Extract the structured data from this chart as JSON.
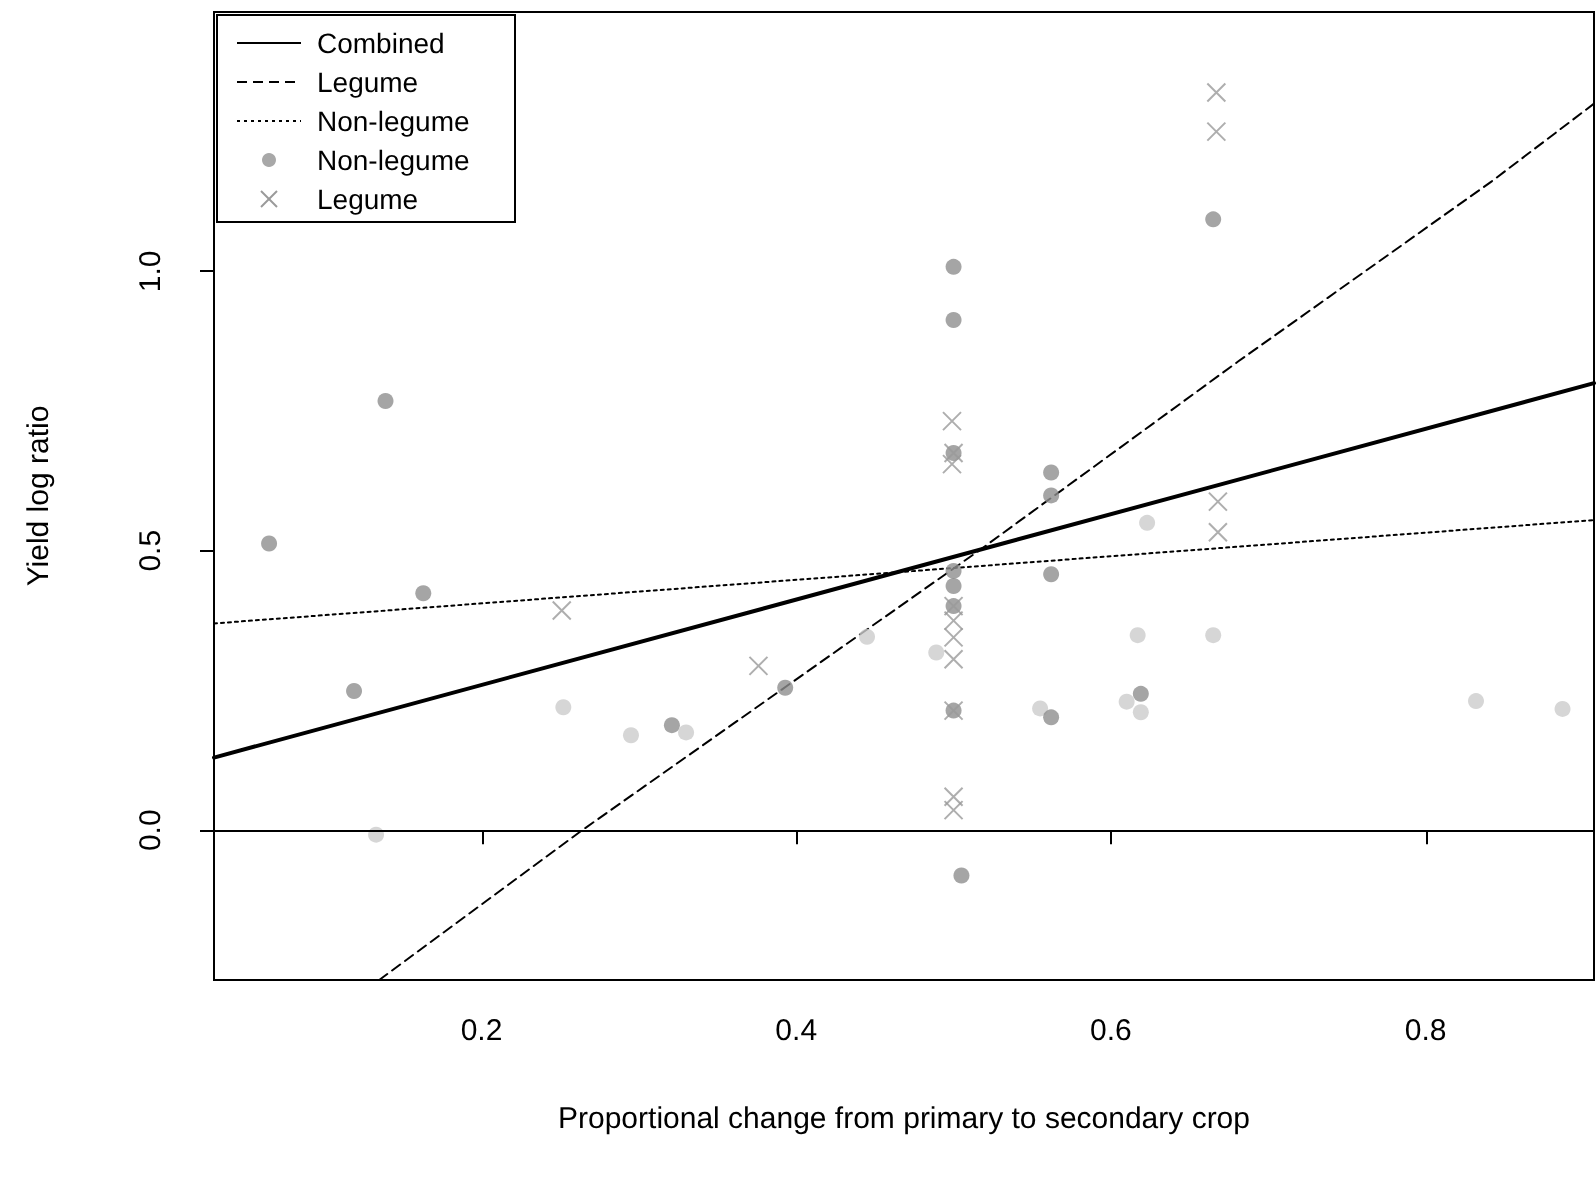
{
  "chart_data": {
    "type": "scatter",
    "xlabel": "Proportional change from primary to secondary crop",
    "ylabel": "Yield log ratio",
    "xlim": [
      0.03,
      0.907
    ],
    "ylim": [
      -0.268,
      1.464
    ],
    "xticks": [
      0.2,
      0.4,
      0.6,
      0.8
    ],
    "yticks": [
      {
        "value": 0,
        "label": "0.0"
      },
      {
        "value": 0.5,
        "label": "0.5"
      },
      {
        "value": 1,
        "label": "1.0"
      }
    ],
    "grid": false,
    "legend": "top left",
    "ref_lines": [
      {
        "axis": "y",
        "value": 0,
        "color": "#000000",
        "line_style": "solid"
      }
    ],
    "series": [
      {
        "name": "Combined",
        "type": "line",
        "color": "#000000",
        "line_style": "solid",
        "marker": "none",
        "x": [
          0.03,
          0.907
        ],
        "values": [
          0.13,
          0.8
        ]
      },
      {
        "name": "Legume",
        "type": "line",
        "color": "#000000",
        "line_style": "dashed",
        "marker": "none",
        "x": [
          0.135,
          0.264,
          0.516,
          0.681,
          0.842,
          0.907
        ],
        "values": [
          -0.268,
          0.0,
          0.5,
          0.839,
          1.161,
          1.3
        ]
      },
      {
        "name": "Non-legume",
        "type": "line",
        "color": "#000000",
        "line_style": "dotted",
        "marker": "none",
        "x": [
          0.03,
          0.907
        ],
        "values": [
          0.37,
          0.555
        ]
      },
      {
        "name": "Non-legume",
        "type": "scatter",
        "color": "#a8a8a8",
        "marker": "circle",
        "x": [
          0.065,
          0.163,
          0.119,
          0.252,
          0.393,
          0.295,
          0.321,
          0.33,
          0.445,
          0.133,
          0.139,
          0.665,
          0.5,
          0.5,
          0.5,
          0.562,
          0.562,
          0.623,
          0.5,
          0.5,
          0.5,
          0.5,
          0.489,
          0.5,
          0.617,
          0.665,
          0.555,
          0.562,
          0.61,
          0.619,
          0.619,
          0.832,
          0.887,
          0.505,
          0.562
        ],
        "values": [
          0.513,
          0.424,
          0.249,
          0.22,
          0.255,
          0.17,
          0.188,
          0.175,
          0.346,
          -0.008,
          0.768,
          1.093,
          1.008,
          0.913,
          0.675,
          0.64,
          0.599,
          0.55,
          0.464,
          0.437,
          0.401,
          0.214,
          0.318,
          null,
          0.349,
          0.349,
          0.218,
          0.202,
          0.23,
          0.244,
          0.211,
          0.231,
          0.217,
          -0.081,
          0.458
        ],
        "colors": [
          "#8f8f8f",
          "#8f8f8f",
          "#8f8f8f",
          "#cccccc",
          "#8f8f8f",
          "#cccccc",
          "#8f8f8f",
          "#cccccc",
          "#cccccc",
          "#cccccc",
          "#8f8f8f",
          "#8f8f8f",
          "#8f8f8f",
          "#8f8f8f",
          "#8f8f8f",
          "#8f8f8f",
          "#8f8f8f",
          "#cccccc",
          "#8f8f8f",
          "#8f8f8f",
          "#8f8f8f",
          "#8f8f8f",
          "#cccccc",
          "#8f8f8f",
          "#cccccc",
          "#cccccc",
          "#cccccc",
          "#8f8f8f",
          "#cccccc",
          "#8f8f8f",
          "#cccccc",
          "#cccccc",
          "#cccccc",
          "#8f8f8f",
          "#8f8f8f"
        ]
      },
      {
        "name": "Legume",
        "type": "scatter",
        "color": "#9a9a9a",
        "marker": "cross",
        "x": [
          0.251,
          0.376,
          0.499,
          0.5,
          0.499,
          0.668,
          0.668,
          0.667,
          0.667,
          0.5,
          0.5,
          0.5,
          0.5,
          0.5,
          0.5,
          0.5
        ],
        "values": [
          0.393,
          0.294,
          0.732,
          0.675,
          0.655,
          0.588,
          0.533,
          1.32,
          1.25,
          0.401,
          0.375,
          0.345,
          0.306,
          0.214,
          0.06,
          0.036
        ]
      }
    ]
  }
}
